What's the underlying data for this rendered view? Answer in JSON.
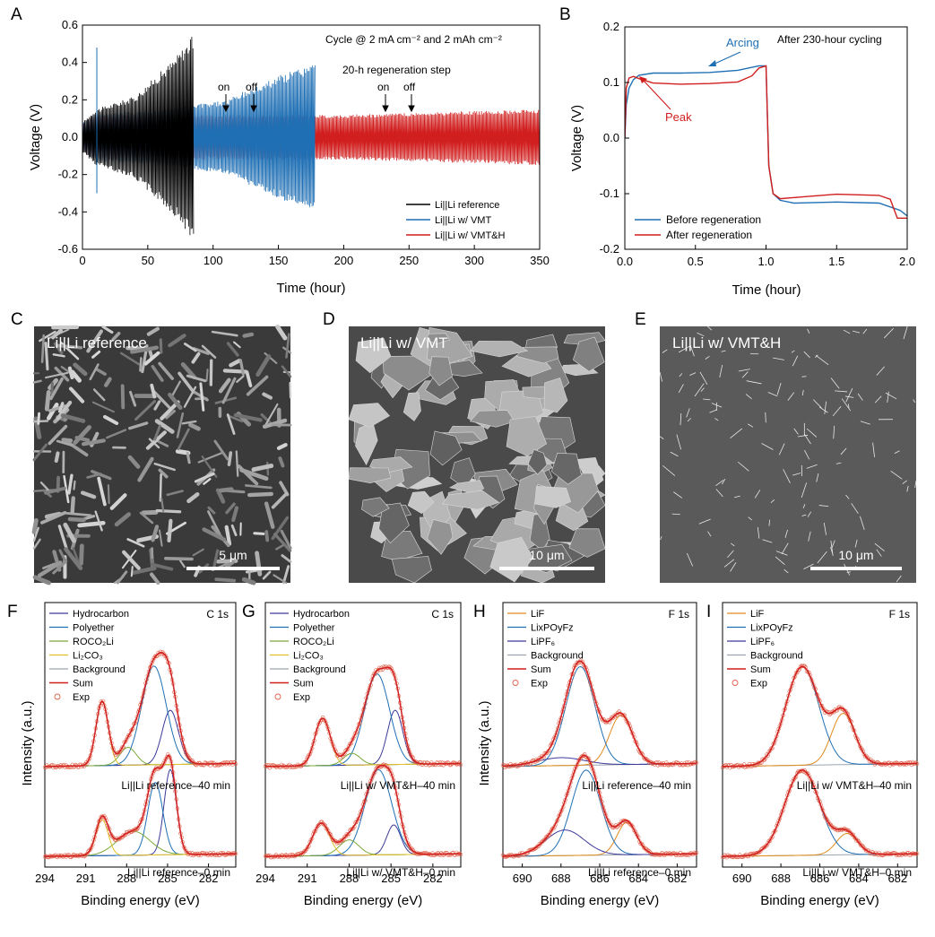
{
  "colors": {
    "black": "#000000",
    "blue": "#1f6fb4",
    "red": "#d11f1f",
    "orange": "#e08a1e",
    "green": "#7aa83a",
    "yellow": "#e3c02b",
    "purple": "#3d3a9a",
    "gray": "#9aa5b0",
    "exp": "#e0604a"
  },
  "panels": {
    "A": {
      "label": "A",
      "title": "Cycle @ 2 mA cm⁻² and 2 mAh cm⁻²",
      "regen": "20-h regeneration step",
      "on1": "on",
      "off1": "off",
      "on2": "on",
      "off2": "off",
      "xlabel": "Time (hour)",
      "ylabel": "Voltage (V)",
      "legend": [
        "Li||Li reference",
        "Li||Li w/ VMT",
        "Li||Li w/ VMT&H"
      ]
    },
    "B": {
      "label": "B",
      "title": "After 230-hour cycling",
      "arcing": "Arcing",
      "peak": "Peak",
      "xlabel": "Time (hour)",
      "ylabel": "Voltage (V)",
      "legend": [
        "Before regeneration",
        "After regeneration"
      ]
    },
    "C": {
      "label": "C",
      "caption": "Li||Li reference",
      "scale": "5 μm"
    },
    "D": {
      "label": "D",
      "caption": "Li||Li w/ VMT",
      "scale": "10 μm"
    },
    "E": {
      "label": "E",
      "caption": "Li||Li w/ VMT&H",
      "scale": "10 μm"
    },
    "F": {
      "label": "F",
      "core": "C 1s",
      "top": "Li||Li reference–40 min",
      "bottom": "Li||Li reference–0 min",
      "xlabel": "Binding energy (eV)",
      "ylabel": "Intensity (a.u.)",
      "legend": [
        "Hydrocarbon",
        "Polyether",
        "ROCO₂Li",
        "Li₂CO₃",
        "Background",
        "Sum",
        "Exp"
      ]
    },
    "G": {
      "label": "G",
      "core": "C 1s",
      "top": "Li||Li w/ VMT&H–40 min",
      "bottom": "Li||Li w/ VMT&H–0 min",
      "xlabel": "Binding energy (eV)",
      "legend": [
        "Hydrocarbon",
        "Polyether",
        "ROCO₂Li",
        "Li₂CO₃",
        "Background",
        "Sum",
        "Exp"
      ]
    },
    "H": {
      "label": "H",
      "core": "F 1s",
      "top": "Li||Li reference–40 min",
      "bottom": "Li||Li reference–0 min",
      "xlabel": "Binding energy (eV)",
      "ylabel": "Intensity (a.u.)",
      "legend": [
        "LiF",
        "LixPOyFz",
        "LiPF₆",
        "Background",
        "Sum",
        "Exp"
      ]
    },
    "I": {
      "label": "I",
      "core": "F 1s",
      "top": "Li||Li w/ VMT&H–40 min",
      "bottom": "Li||Li w/ VMT&H–0 min",
      "xlabel": "Binding energy (eV)",
      "legend": [
        "LiF",
        "LixPOyFz",
        "LiPF₆",
        "Background",
        "Sum",
        "Exp"
      ]
    }
  },
  "chart_data": [
    {
      "panel": "A",
      "type": "line",
      "xlabel": "Time (hour)",
      "ylabel": "Voltage (V)",
      "xlim": [
        0,
        350
      ],
      "ylim": [
        -0.6,
        0.6
      ],
      "xticks": [
        0,
        50,
        100,
        150,
        200,
        250,
        300,
        350
      ],
      "yticks": [
        -0.6,
        -0.4,
        -0.2,
        0.0,
        0.2,
        0.4,
        0.6
      ],
      "series": [
        {
          "name": "Li||Li reference",
          "envelope": {
            "t": [
              0,
              10,
              40,
              70,
              85
            ],
            "amp": [
              0.08,
              0.15,
              0.22,
              0.42,
              0.55
            ]
          }
        },
        {
          "name": "Li||Li w/ VMT",
          "envelope": {
            "t": [
              0,
              10,
              60,
              110,
              150,
              178
            ],
            "amp": [
              0.08,
              0.13,
              0.15,
              0.2,
              0.33,
              0.4
            ]
          }
        },
        {
          "name": "Li||Li w/ VMT&H",
          "envelope": {
            "t": [
              0,
              10,
              200,
              350
            ],
            "amp": [
              0.08,
              0.12,
              0.12,
              0.15
            ]
          }
        }
      ]
    },
    {
      "panel": "B",
      "type": "line",
      "xlabel": "Time (hour)",
      "ylabel": "Voltage (V)",
      "xlim": [
        0,
        2
      ],
      "ylim": [
        -0.2,
        0.2
      ],
      "xticks": [
        0.0,
        0.5,
        1.0,
        1.5,
        2.0
      ],
      "yticks": [
        -0.2,
        -0.1,
        0.0,
        0.1,
        0.2
      ],
      "series": [
        {
          "name": "Before regeneration",
          "x": [
            0,
            0.01,
            0.03,
            0.06,
            0.1,
            0.2,
            0.4,
            0.6,
            0.8,
            0.95,
            1.0,
            1.02,
            1.05,
            1.1,
            1.2,
            1.5,
            1.8,
            1.95,
            2.0
          ],
          "y": [
            0.0,
            0.06,
            0.09,
            0.105,
            0.113,
            0.117,
            0.117,
            0.118,
            0.122,
            0.13,
            0.13,
            -0.05,
            -0.1,
            -0.112,
            -0.117,
            -0.115,
            -0.117,
            -0.13,
            -0.14
          ]
        },
        {
          "name": "After regeneration",
          "x": [
            0,
            0.01,
            0.03,
            0.06,
            0.1,
            0.2,
            0.4,
            0.6,
            0.8,
            0.9,
            0.95,
            1.0,
            1.02,
            1.05,
            1.1,
            1.2,
            1.5,
            1.8,
            1.88,
            1.93,
            2.0
          ],
          "y": [
            0.0,
            0.09,
            0.108,
            0.111,
            0.107,
            0.099,
            0.097,
            0.098,
            0.101,
            0.112,
            0.126,
            0.13,
            -0.05,
            -0.1,
            -0.109,
            -0.107,
            -0.101,
            -0.103,
            -0.11,
            -0.144,
            -0.144
          ]
        }
      ]
    },
    {
      "panel": "F",
      "type": "line",
      "xlim": [
        294,
        280
      ],
      "xticks": [
        294,
        291,
        288,
        285,
        282
      ],
      "xlabel": "Binding energy (eV)",
      "ylabel": "Intensity (a.u.)",
      "spectra": [
        {
          "name": "Li||Li reference–40 min",
          "peaks": [
            {
              "name": "Hydrocarbon",
              "center": 284.8,
              "height": 0.55,
              "width": 0.6
            },
            {
              "name": "Polyether",
              "center": 286.0,
              "height": 1.0,
              "width": 0.9
            },
            {
              "name": "ROCO₂Li",
              "center": 287.9,
              "height": 0.18,
              "width": 0.6
            },
            {
              "name": "Li₂CO₃",
              "center": 289.8,
              "height": 0.65,
              "width": 0.45
            }
          ]
        },
        {
          "name": "Li||Li reference–0 min",
          "peaks": [
            {
              "name": "Hydrocarbon",
              "center": 284.8,
              "height": 1.0,
              "width": 0.45
            },
            {
              "name": "Polyether",
              "center": 285.9,
              "height": 0.85,
              "width": 0.55
            },
            {
              "name": "ROCO₂Li",
              "center": 287.5,
              "height": 0.28,
              "width": 1.2
            },
            {
              "name": "Li₂CO₃",
              "center": 289.8,
              "height": 0.42,
              "width": 0.45
            }
          ]
        }
      ]
    },
    {
      "panel": "G",
      "type": "line",
      "xlim": [
        294,
        280
      ],
      "xticks": [
        294,
        291,
        288,
        285,
        282
      ],
      "xlabel": "Binding energy (eV)",
      "spectra": [
        {
          "name": "Li||Li w/ VMT&H–40 min",
          "peaks": [
            {
              "name": "Hydrocarbon",
              "center": 284.7,
              "height": 0.55,
              "width": 0.55
            },
            {
              "name": "Polyether",
              "center": 286.0,
              "height": 0.92,
              "width": 0.9
            },
            {
              "name": "ROCO₂Li",
              "center": 287.8,
              "height": 0.12,
              "width": 0.6
            },
            {
              "name": "Li₂CO₃",
              "center": 289.9,
              "height": 0.48,
              "width": 0.55
            }
          ]
        },
        {
          "name": "Li||Li w/ VMT&H–0 min",
          "peaks": [
            {
              "name": "Hydrocarbon",
              "center": 284.8,
              "height": 0.35,
              "width": 0.5
            },
            {
              "name": "Polyether",
              "center": 285.9,
              "height": 1.0,
              "width": 0.95
            },
            {
              "name": "ROCO₂Li",
              "center": 288.0,
              "height": 0.18,
              "width": 0.7
            },
            {
              "name": "Li₂CO₃",
              "center": 290.0,
              "height": 0.38,
              "width": 0.6
            }
          ]
        }
      ]
    },
    {
      "panel": "H",
      "type": "line",
      "xlim": [
        691,
        681
      ],
      "xticks": [
        690,
        688,
        686,
        684,
        682
      ],
      "xlabel": "Binding energy (eV)",
      "ylabel": "Intensity (a.u.)",
      "spectra": [
        {
          "name": "Li||Li reference–40 min",
          "peaks": [
            {
              "name": "LiF",
              "center": 684.9,
              "height": 0.5,
              "width": 0.6
            },
            {
              "name": "LixPOyFz",
              "center": 687.0,
              "height": 1.0,
              "width": 0.75
            },
            {
              "name": "LiPF₆",
              "center": 688.0,
              "height": 0.08,
              "width": 1.2
            }
          ]
        },
        {
          "name": "Li||Li reference–0 min",
          "peaks": [
            {
              "name": "LiF",
              "center": 684.6,
              "height": 0.38,
              "width": 0.5
            },
            {
              "name": "LixPOyFz",
              "center": 686.7,
              "height": 1.0,
              "width": 0.75
            },
            {
              "name": "LiPF₆",
              "center": 687.8,
              "height": 0.3,
              "width": 1.0
            }
          ]
        }
      ]
    },
    {
      "panel": "I",
      "type": "line",
      "xlim": [
        691,
        681
      ],
      "xticks": [
        690,
        688,
        686,
        684,
        682
      ],
      "xlabel": "Binding energy (eV)",
      "spectra": [
        {
          "name": "Li||Li w/ VMT&H–40 min",
          "peaks": [
            {
              "name": "LiF",
              "center": 684.8,
              "height": 0.52,
              "width": 0.6
            },
            {
              "name": "LixPOyFz",
              "center": 686.9,
              "height": 1.0,
              "width": 0.85
            }
          ]
        },
        {
          "name": "Li||Li w/ VMT&H–0 min",
          "peaks": [
            {
              "name": "LiF",
              "center": 684.6,
              "height": 0.25,
              "width": 0.55
            },
            {
              "name": "LixPOyFz",
              "center": 686.9,
              "height": 1.0,
              "width": 0.9
            }
          ]
        }
      ]
    }
  ]
}
